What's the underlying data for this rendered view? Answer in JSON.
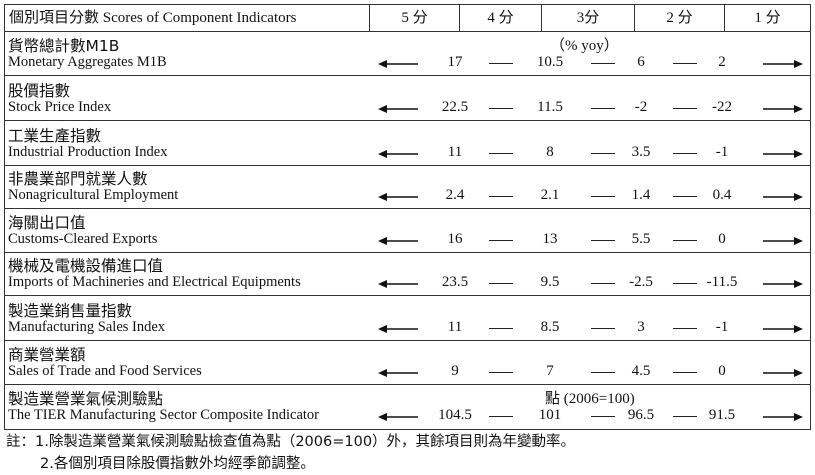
{
  "header": {
    "indicator_col": "個別項目分數 Scores of Component Indicators",
    "scores": [
      "5 分",
      "4 分",
      "3分",
      "2 分",
      "1 分"
    ]
  },
  "rows": [
    {
      "zh": "貨幣總計數M1B",
      "en": "Monetary Aggregates M1B",
      "unit": "（%  yoy）",
      "values": [
        "17",
        "10.5",
        "6",
        "2"
      ]
    },
    {
      "zh": "股價指數",
      "en": "Stock Price Index",
      "unit": "",
      "values": [
        "22.5",
        "11.5",
        "-2",
        "-22"
      ]
    },
    {
      "zh": "工業生產指數",
      "en": "Industrial Production Index",
      "unit": "",
      "values": [
        "11",
        "8",
        "3.5",
        "-1"
      ]
    },
    {
      "zh": "非農業部門就業人數",
      "en": "Nonagricultural Employment",
      "unit": "",
      "values": [
        "2.4",
        "2.1",
        "1.4",
        "0.4"
      ]
    },
    {
      "zh": "海關出口值",
      "en": "Customs-Cleared Exports",
      "unit": "",
      "values": [
        "16",
        "13",
        "5.5",
        "0"
      ]
    },
    {
      "zh": "機械及電機設備進口值",
      "en": "Imports of Machineries and Electrical Equipments",
      "unit": "",
      "values": [
        "23.5",
        "9.5",
        "-2.5",
        "-11.5"
      ]
    },
    {
      "zh": "製造業銷售量指數",
      "en": "Manufacturing Sales Index",
      "unit": "",
      "values": [
        "11",
        "8.5",
        "3",
        "-1"
      ]
    },
    {
      "zh": "商業營業額",
      "en": "Sales of Trade and Food Services",
      "unit": "",
      "values": [
        "9",
        "7",
        "4.5",
        "0"
      ]
    },
    {
      "zh": "製造業營業氣候測驗點",
      "en": "The TIER Manufacturing Sector Composite Indicator",
      "unit": "點 (2006=100)",
      "values": [
        "104.5",
        "101",
        "96.5",
        "91.5"
      ]
    }
  ],
  "notes": [
    "註：1.除製造業營業氣候測驗點檢查值為點（2006=100）外，其餘項目則為年變動率。",
    "2.各個別項目除股價指數外均經季節調整。"
  ]
}
